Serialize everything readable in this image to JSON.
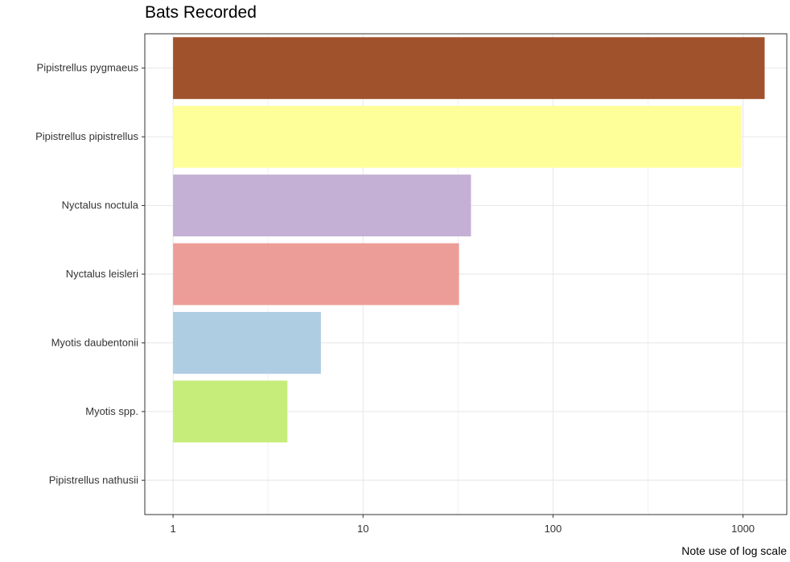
{
  "chart_data": {
    "type": "bar",
    "orientation": "horizontal",
    "title": "Bats Recorded",
    "caption": "Note use of log scale",
    "xscale": "log",
    "xlim": [
      0.71,
      1700
    ],
    "xticks": [
      1,
      10,
      100,
      1000
    ],
    "xtick_labels": [
      "1",
      "10",
      "100",
      "1000"
    ],
    "grid": true,
    "categories": [
      "Pipistrellus pygmaeus",
      "Pipistrellus pipistrellus",
      "Nyctalus noctula",
      "Nyctalus leisleri",
      "Myotis daubentonii",
      "Myotis spp.",
      "Pipistrellus nathusii"
    ],
    "values": [
      1300,
      980,
      37,
      32,
      6,
      4,
      1
    ],
    "colors": [
      "#a0522d",
      "#ffff99",
      "#c5b0d5",
      "#ed9d97",
      "#aecde3",
      "#c6ed7a",
      "#cccccc"
    ]
  }
}
